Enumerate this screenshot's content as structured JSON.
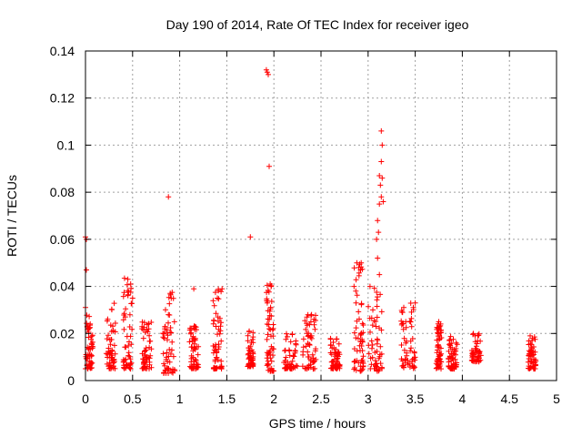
{
  "chart_data": {
    "type": "scatter",
    "title": "Day 190 of 2014, Rate Of TEC Index for receiver igeo",
    "xlabel": "GPS time / hours",
    "ylabel": "ROTI / TECUs",
    "xlim": [
      0,
      5
    ],
    "ylim": [
      0,
      0.14
    ],
    "grid": true,
    "marker": "+",
    "color": "#ff0000",
    "xticks": [
      0,
      0.5,
      1,
      1.5,
      2,
      2.5,
      3,
      3.5,
      4,
      4.5,
      5
    ],
    "xtick_labels": [
      "0",
      "0.5",
      "1",
      "1.5",
      "2",
      "2.5",
      "3",
      "3.5",
      "4",
      "4.5",
      "5"
    ],
    "yticks": [
      0,
      0.02,
      0.04,
      0.06,
      0.08,
      0.1,
      0.12,
      0.14
    ],
    "ytick_labels": [
      "0",
      "0.02",
      "0.04",
      "0.06",
      "0.08",
      "0.1",
      "0.12",
      "0.14"
    ],
    "clusters": [
      {
        "x": [
          0.0,
          0.08
        ],
        "y": [
          0.005,
          0.028
        ]
      },
      {
        "x": [
          0.22,
          0.32
        ],
        "y": [
          0.005,
          0.033
        ]
      },
      {
        "x": [
          0.4,
          0.5
        ],
        "y": [
          0.005,
          0.044
        ]
      },
      {
        "x": [
          0.6,
          0.7
        ],
        "y": [
          0.005,
          0.025
        ]
      },
      {
        "x": [
          0.82,
          0.95
        ],
        "y": [
          0.003,
          0.038
        ]
      },
      {
        "x": [
          1.1,
          1.2
        ],
        "y": [
          0.005,
          0.024
        ]
      },
      {
        "x": [
          1.35,
          1.45
        ],
        "y": [
          0.005,
          0.039
        ]
      },
      {
        "x": [
          1.72,
          1.78
        ],
        "y": [
          0.006,
          0.021
        ]
      },
      {
        "x": [
          1.92,
          2.0
        ],
        "y": [
          0.004,
          0.041
        ]
      },
      {
        "x": [
          2.1,
          2.25
        ],
        "y": [
          0.005,
          0.021
        ]
      },
      {
        "x": [
          2.3,
          2.45
        ],
        "y": [
          0.005,
          0.028
        ]
      },
      {
        "x": [
          2.6,
          2.7
        ],
        "y": [
          0.005,
          0.018
        ]
      },
      {
        "x": [
          2.85,
          2.95
        ],
        "y": [
          0.004,
          0.05
        ]
      },
      {
        "x": [
          3.0,
          3.15
        ],
        "y": [
          0.004,
          0.04
        ]
      },
      {
        "x": [
          3.35,
          3.5
        ],
        "y": [
          0.005,
          0.033
        ]
      },
      {
        "x": [
          3.72,
          3.78
        ],
        "y": [
          0.005,
          0.025
        ]
      },
      {
        "x": [
          3.85,
          3.95
        ],
        "y": [
          0.005,
          0.019
        ]
      },
      {
        "x": [
          4.1,
          4.2
        ],
        "y": [
          0.008,
          0.02
        ]
      },
      {
        "x": [
          4.7,
          4.78
        ],
        "y": [
          0.005,
          0.019
        ]
      }
    ],
    "points": [
      [
        0.0,
        0.061
      ],
      [
        0.01,
        0.06
      ],
      [
        0.01,
        0.047
      ],
      [
        0.0,
        0.031
      ],
      [
        0.05,
        0.024
      ],
      [
        0.45,
        0.043
      ],
      [
        0.48,
        0.041
      ],
      [
        0.5,
        0.035
      ],
      [
        0.6,
        0.022
      ],
      [
        0.88,
        0.078
      ],
      [
        0.9,
        0.037
      ],
      [
        0.91,
        0.035
      ],
      [
        0.88,
        0.028
      ],
      [
        1.15,
        0.039
      ],
      [
        1.4,
        0.035
      ],
      [
        1.45,
        0.039
      ],
      [
        1.75,
        0.061
      ],
      [
        1.92,
        0.132
      ],
      [
        1.93,
        0.131
      ],
      [
        1.94,
        0.13
      ],
      [
        1.95,
        0.091
      ],
      [
        1.96,
        0.041
      ],
      [
        1.97,
        0.04
      ],
      [
        1.93,
        0.033
      ],
      [
        1.95,
        0.022
      ],
      [
        2.35,
        0.027
      ],
      [
        2.4,
        0.028
      ],
      [
        2.88,
        0.05
      ],
      [
        2.9,
        0.048
      ],
      [
        2.92,
        0.047
      ],
      [
        2.85,
        0.04
      ],
      [
        2.87,
        0.038
      ],
      [
        3.1,
        0.052
      ],
      [
        3.12,
        0.045
      ],
      [
        3.09,
        0.06
      ],
      [
        3.11,
        0.063
      ],
      [
        3.1,
        0.068
      ],
      [
        3.12,
        0.075
      ],
      [
        3.14,
        0.078
      ],
      [
        3.16,
        0.076
      ],
      [
        3.13,
        0.083
      ],
      [
        3.15,
        0.086
      ],
      [
        3.12,
        0.087
      ],
      [
        3.14,
        0.093
      ],
      [
        3.15,
        0.1
      ],
      [
        3.14,
        0.106
      ],
      [
        3.02,
        0.04
      ],
      [
        3.05,
        0.03
      ],
      [
        3.5,
        0.033
      ],
      [
        3.48,
        0.031
      ],
      [
        3.4,
        0.025
      ],
      [
        3.75,
        0.025
      ],
      [
        3.77,
        0.024
      ],
      [
        4.72,
        0.019
      ]
    ]
  }
}
